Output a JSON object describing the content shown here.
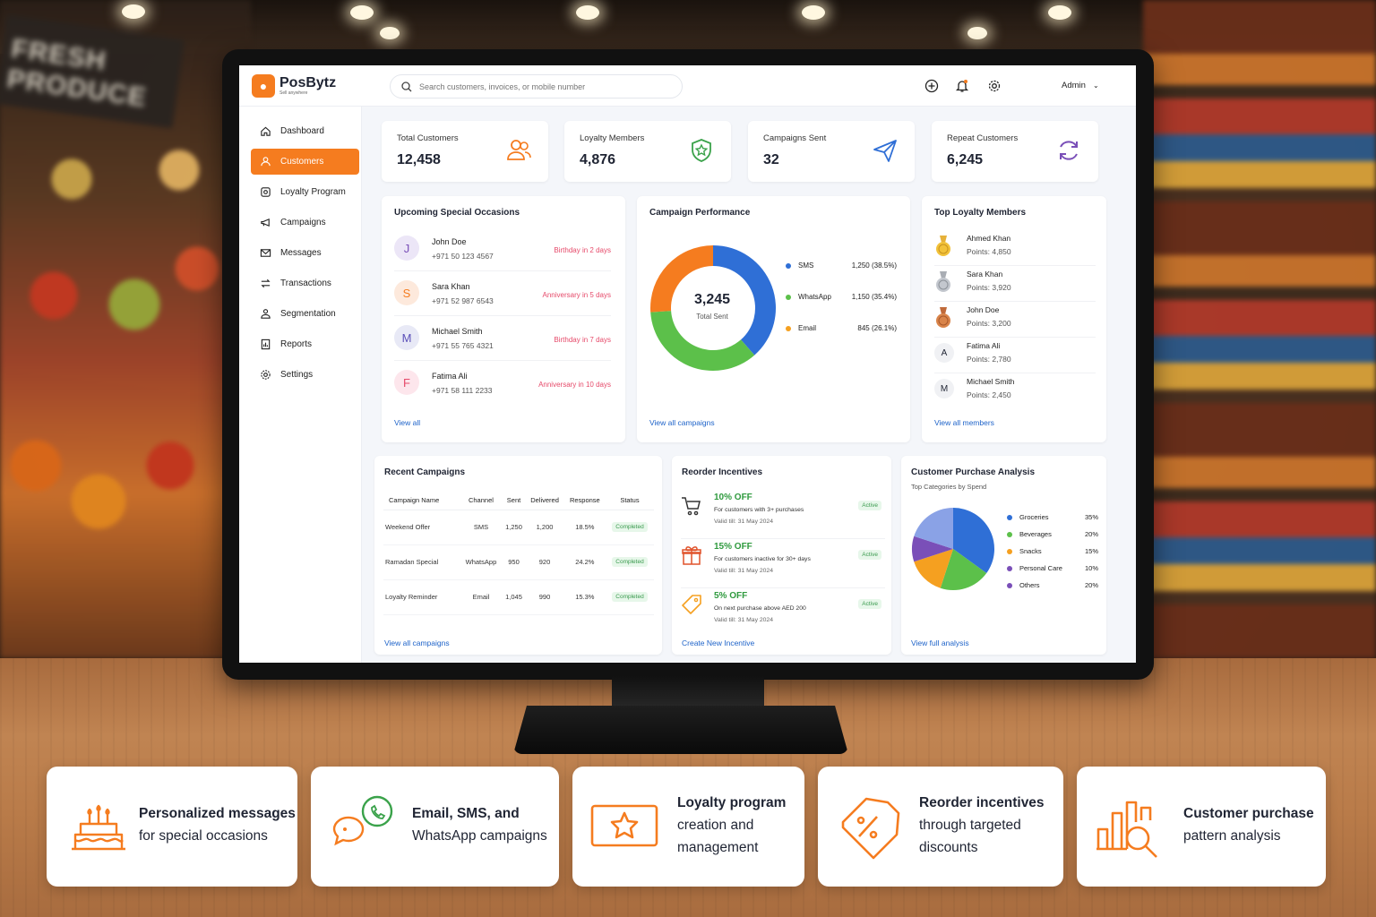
{
  "store_sign": "FRESH PRODUCE",
  "brand": {
    "name": "PosBytz",
    "tagline": "Sell anywhere"
  },
  "search": {
    "placeholder": "Search customers, invoices, or mobile number"
  },
  "header": {
    "user": "Admin"
  },
  "sidebar": {
    "items": [
      {
        "label": "Dashboard",
        "icon": "home-icon",
        "active": false
      },
      {
        "label": "Customers",
        "icon": "users-icon",
        "active": true
      },
      {
        "label": "Loyalty Program",
        "icon": "loyalty-icon",
        "active": false
      },
      {
        "label": "Campaigns",
        "icon": "megaphone-icon",
        "active": false
      },
      {
        "label": "Messages",
        "icon": "mail-icon",
        "active": false
      },
      {
        "label": "Transactions",
        "icon": "transfer-icon",
        "active": false
      },
      {
        "label": "Segmentation",
        "icon": "segment-icon",
        "active": false
      },
      {
        "label": "Reports",
        "icon": "report-icon",
        "active": false
      },
      {
        "label": "Settings",
        "icon": "gear-icon",
        "active": false
      }
    ]
  },
  "stats": [
    {
      "label": "Total Customers",
      "value": "12,458",
      "icon": "users-icon"
    },
    {
      "label": "Loyalty Members",
      "value": "4,876",
      "icon": "shield-star-icon"
    },
    {
      "label": "Campaigns Sent",
      "value": "32",
      "icon": "send-icon"
    },
    {
      "label": "Repeat Customers",
      "value": "6,245",
      "icon": "refresh-icon"
    }
  ],
  "occasions": {
    "title": "Upcoming Special Occasions",
    "items": [
      {
        "initial": "J",
        "name": "John Doe",
        "phone": "+971 50 123 4567",
        "event": "Birthday in 2 days"
      },
      {
        "initial": "S",
        "name": "Sara Khan",
        "phone": "+971 52 987 6543",
        "event": "Anniversary in 5 days"
      },
      {
        "initial": "M",
        "name": "Michael Smith",
        "phone": "+971 55 765 4321",
        "event": "Birthday in 7 days"
      },
      {
        "initial": "F",
        "name": "Fatima Ali",
        "phone": "+971 58 111 2233",
        "event": "Anniversary in 10 days"
      }
    ],
    "link": "View all"
  },
  "campaign_performance": {
    "title": "Campaign Performance",
    "total": "3,245",
    "total_label": "Total Sent",
    "legend": [
      {
        "name": "SMS",
        "value": "1,250 (38.5%)"
      },
      {
        "name": "WhatsApp",
        "value": "1,150 (35.4%)"
      },
      {
        "name": "Email",
        "value": "845 (26.1%)"
      }
    ],
    "link": "View all campaigns"
  },
  "top_members": {
    "title": "Top Loyalty Members",
    "items": [
      {
        "name": "Ahmed Khan",
        "points": "Points: 4,850",
        "badge": "gold-medal-icon"
      },
      {
        "name": "Sara Khan",
        "points": "Points: 3,920",
        "badge": "silver-medal-icon"
      },
      {
        "name": "John Doe",
        "points": "Points: 3,200",
        "badge": "bronze-medal-icon"
      },
      {
        "name": "Fatima Ali",
        "points": "Points: 2,780",
        "badge": "A"
      },
      {
        "name": "Michael Smith",
        "points": "Points: 2,450",
        "badge": "M"
      }
    ],
    "link": "View all members"
  },
  "recent_campaigns": {
    "title": "Recent Campaigns",
    "columns": [
      "Campaign Name",
      "Channel",
      "Sent",
      "Delivered",
      "Response",
      "Status"
    ],
    "rows": [
      [
        "Weekend Offer",
        "SMS",
        "1,250",
        "1,200",
        "18.5%",
        "Completed"
      ],
      [
        "Ramadan Special",
        "WhatsApp",
        "950",
        "920",
        "24.2%",
        "Completed"
      ],
      [
        "Loyalty Reminder",
        "Email",
        "1,045",
        "990",
        "15.3%",
        "Completed"
      ]
    ],
    "link": "View all campaigns"
  },
  "reorder": {
    "title": "Reorder Incentives",
    "items": [
      {
        "offer": "10% OFF",
        "desc": "For customers with 3+ purchases",
        "valid": "Valid till: 31 May 2024",
        "status": "Active",
        "icon": "cart-icon"
      },
      {
        "offer": "15% OFF",
        "desc": "For customers inactive for 30+ days",
        "valid": "Valid till: 31 May 2024",
        "status": "Active",
        "icon": "gift-icon"
      },
      {
        "offer": "5% OFF",
        "desc": "On next purchase above AED 200",
        "valid": "Valid till: 31 May 2024",
        "status": "Active",
        "icon": "tag-icon"
      }
    ],
    "link": "Create New Incentive"
  },
  "purchase_analysis": {
    "title": "Customer Purchase Analysis",
    "subtitle": "Top Categories by Spend",
    "link": "View full analysis"
  },
  "chart_data": [
    {
      "type": "pie",
      "categories": [
        "SMS",
        "WhatsApp",
        "Email"
      ],
      "values": [
        1250,
        1150,
        845
      ],
      "percent": [
        38.5,
        35.4,
        26.1
      ],
      "title": "Campaign Performance",
      "colors": [
        "#2f6fd6",
        "#5cc04a",
        "#f57c1f"
      ]
    },
    {
      "type": "pie",
      "categories": [
        "Groceries",
        "Beverages",
        "Snacks",
        "Personal Care",
        "Others"
      ],
      "values": [
        35,
        20,
        15,
        10,
        20
      ],
      "title": "Top Categories by Spend",
      "colors": [
        "#2f6fd6",
        "#5cc04a",
        "#f5a020",
        "#7a4fb8",
        "#8aa2e6"
      ]
    }
  ],
  "features": [
    {
      "text1": "Personalized messages",
      "text2": "for special occasions",
      "text3": "",
      "icon": "cake-icon"
    },
    {
      "text1": "Email, SMS, and",
      "text2": "WhatsApp campaigns",
      "text3": "",
      "icon": "chat-bubbles-icon"
    },
    {
      "text1": "Loyalty program",
      "text2": "creation and",
      "text3": "management",
      "icon": "star-card-icon"
    },
    {
      "text1": "Reorder incentives",
      "text2": "through targeted",
      "text3": "discounts",
      "icon": "discount-tag-icon"
    },
    {
      "text1": "Customer purchase",
      "text2": "pattern analysis",
      "text3": "",
      "icon": "chart-search-icon"
    }
  ],
  "colors": {
    "accent": "#f57c1f",
    "link": "#1e63c9",
    "positive": "#2f9a3e"
  }
}
